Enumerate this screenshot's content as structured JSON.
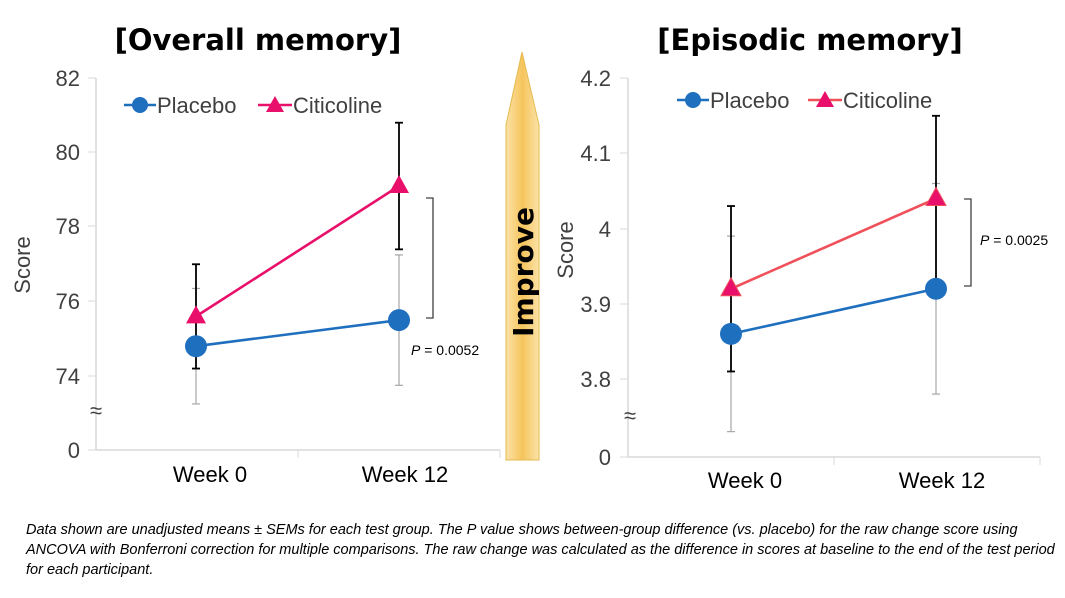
{
  "chart_data": [
    {
      "type": "line",
      "title": "[Overall memory]",
      "ylabel": "Score",
      "xlabel": "",
      "categories": [
        "Week 0",
        "Week 12"
      ],
      "ylim": [
        73.0,
        82
      ],
      "yticks": [
        "82",
        "80",
        "78",
        "76",
        "74"
      ],
      "axis_break_tick": "0",
      "break_symbol": "≈",
      "series": [
        {
          "name": "Placebo",
          "color": "#1f6fbf",
          "marker": "circle",
          "values": [
            74.8,
            75.5
          ],
          "sem": [
            1.55,
            1.75
          ]
        },
        {
          "name": "Citicoline",
          "color": "#e8106a",
          "marker": "triangle",
          "values": [
            75.6,
            79.1
          ],
          "sem": [
            1.4,
            1.7
          ]
        }
      ],
      "p_value_label": "= 0.0052",
      "p_symbol": "P",
      "legend_position": "top-left"
    },
    {
      "type": "line",
      "title": "[Episodic memory]",
      "ylabel": "Score",
      "xlabel": "",
      "categories": [
        "Week 0",
        "Week 12"
      ],
      "ylim": [
        3.77,
        4.2
      ],
      "yticks": [
        "4.2",
        "4.1",
        "4",
        "3.9",
        "3.8"
      ],
      "axis_break_tick": "0",
      "break_symbol": "≈",
      "series": [
        {
          "name": "Placebo",
          "color": "#1f6fbf",
          "marker": "circle",
          "values": [
            3.86,
            3.92
          ],
          "sem": [
            0.13,
            0.14
          ]
        },
        {
          "name": "Citicoline",
          "color": "#f0505a",
          "marker": "triangle",
          "values": [
            3.92,
            4.04
          ],
          "sem": [
            0.11,
            0.11
          ]
        }
      ],
      "p_value_label": "= 0.0025",
      "p_symbol": "P",
      "legend_position": "top-left"
    }
  ],
  "improve_label": "Improve",
  "improve_color": "#f9cf7a",
  "caption": "Data shown are unadjusted means ± SEMs for each test group. The P value shows between-group difference (vs. placebo) for the raw change score using ANCOVA with Bonferroni correction for multiple comparisons. The raw change was calculated as the difference in scores at baseline to the end of the test period for each participant."
}
